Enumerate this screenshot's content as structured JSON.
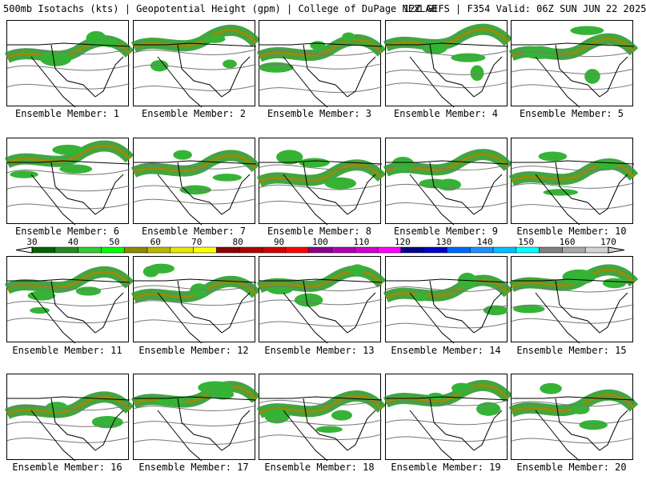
{
  "header": {
    "left": "500mb Isotachs (kts) | Geopotential Height (gpm) | College of DuPage NEXLAB",
    "right": "12Z GEFS | F354 Valid: 06Z SUN JUN 22 2025"
  },
  "members": [
    {
      "label": "Ensemble Member: 1"
    },
    {
      "label": "Ensemble Member: 2"
    },
    {
      "label": "Ensemble Member: 3"
    },
    {
      "label": "Ensemble Member: 4"
    },
    {
      "label": "Ensemble Member: 5"
    },
    {
      "label": "Ensemble Member: 6"
    },
    {
      "label": "Ensemble Member: 7"
    },
    {
      "label": "Ensemble Member: 8"
    },
    {
      "label": "Ensemble Member: 9"
    },
    {
      "label": "Ensemble Member: 10"
    },
    {
      "label": "Ensemble Member: 11"
    },
    {
      "label": "Ensemble Member: 12"
    },
    {
      "label": "Ensemble Member: 13"
    },
    {
      "label": "Ensemble Member: 14"
    },
    {
      "label": "Ensemble Member: 15"
    },
    {
      "label": "Ensemble Member: 16"
    },
    {
      "label": "Ensemble Member: 17"
    },
    {
      "label": "Ensemble Member: 18"
    },
    {
      "label": "Ensemble Member: 19"
    },
    {
      "label": "Ensemble Member: 20"
    }
  ],
  "colorbar": {
    "top_labels": [
      "30",
      "40",
      "50",
      "60",
      "70",
      "80",
      "90",
      "100",
      "110",
      "120",
      "130",
      "140",
      "150",
      "160",
      "170"
    ],
    "colors": [
      "#006400",
      "#228b22",
      "#32cd32",
      "#00ff00",
      "#8b8b00",
      "#b8b800",
      "#e6e600",
      "#ffff00",
      "#8b0000",
      "#b00000",
      "#d00000",
      "#ff0000",
      "#8b008b",
      "#b000b0",
      "#d000d0",
      "#ff00ff",
      "#00008b",
      "#0000cd",
      "#0066ff",
      "#1e90ff",
      "#00bfff",
      "#00ffff",
      "#808080",
      "#a9a9a9",
      "#d3d3d3"
    ]
  }
}
